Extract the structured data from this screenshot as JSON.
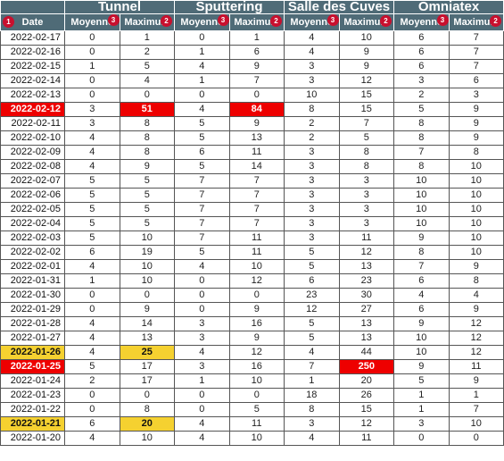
{
  "headers": {
    "groups": [
      "Tunnel",
      "Sputtering",
      "Salle des Cuves",
      "Omniatex"
    ],
    "date": "Date",
    "moyenne": "Moyenne",
    "maximum": "Maximum",
    "badges": {
      "date": "1",
      "moyenne": "3",
      "maximum": "2"
    }
  },
  "colors": {
    "header_bg": "#4f6b77",
    "red_highlight": "#ee0000",
    "yellow_highlight": "#f5d130",
    "badge": "#c8102e"
  },
  "rows": [
    {
      "date": "2022-02-17",
      "values": [
        "0",
        "1",
        "0",
        "1",
        "4",
        "10",
        "6",
        "7"
      ],
      "date_hl": "",
      "hl": [
        "",
        "",
        "",
        "",
        "",
        "",
        "",
        ""
      ]
    },
    {
      "date": "2022-02-16",
      "values": [
        "0",
        "2",
        "1",
        "6",
        "4",
        "9",
        "6",
        "7"
      ],
      "date_hl": "",
      "hl": [
        "",
        "",
        "",
        "",
        "",
        "",
        "",
        ""
      ]
    },
    {
      "date": "2022-02-15",
      "values": [
        "1",
        "5",
        "4",
        "9",
        "3",
        "9",
        "6",
        "7"
      ],
      "date_hl": "",
      "hl": [
        "",
        "",
        "",
        "",
        "",
        "",
        "",
        ""
      ]
    },
    {
      "date": "2022-02-14",
      "values": [
        "0",
        "4",
        "1",
        "7",
        "3",
        "12",
        "3",
        "6"
      ],
      "date_hl": "",
      "hl": [
        "",
        "",
        "",
        "",
        "",
        "",
        "",
        ""
      ]
    },
    {
      "date": "2022-02-13",
      "values": [
        "0",
        "0",
        "0",
        "0",
        "10",
        "15",
        "2",
        "3"
      ],
      "date_hl": "",
      "hl": [
        "",
        "",
        "",
        "",
        "",
        "",
        "",
        ""
      ]
    },
    {
      "date": "2022-02-12",
      "values": [
        "3",
        "51",
        "4",
        "84",
        "8",
        "15",
        "5",
        "9"
      ],
      "date_hl": "red",
      "hl": [
        "",
        "red",
        "",
        "red",
        "",
        "",
        "",
        ""
      ]
    },
    {
      "date": "2022-02-11",
      "values": [
        "3",
        "8",
        "5",
        "9",
        "2",
        "7",
        "8",
        "9"
      ],
      "date_hl": "",
      "hl": [
        "",
        "",
        "",
        "",
        "",
        "",
        "",
        ""
      ]
    },
    {
      "date": "2022-02-10",
      "values": [
        "4",
        "8",
        "5",
        "13",
        "2",
        "5",
        "8",
        "9"
      ],
      "date_hl": "",
      "hl": [
        "",
        "",
        "",
        "",
        "",
        "",
        "",
        ""
      ]
    },
    {
      "date": "2022-02-09",
      "values": [
        "4",
        "8",
        "6",
        "11",
        "3",
        "8",
        "7",
        "8"
      ],
      "date_hl": "",
      "hl": [
        "",
        "",
        "",
        "",
        "",
        "",
        "",
        ""
      ]
    },
    {
      "date": "2022-02-08",
      "values": [
        "4",
        "9",
        "5",
        "14",
        "3",
        "8",
        "8",
        "10"
      ],
      "date_hl": "",
      "hl": [
        "",
        "",
        "",
        "",
        "",
        "",
        "",
        ""
      ]
    },
    {
      "date": "2022-02-07",
      "values": [
        "5",
        "5",
        "7",
        "7",
        "3",
        "3",
        "10",
        "10"
      ],
      "date_hl": "",
      "hl": [
        "",
        "",
        "",
        "",
        "",
        "",
        "",
        ""
      ]
    },
    {
      "date": "2022-02-06",
      "values": [
        "5",
        "5",
        "7",
        "7",
        "3",
        "3",
        "10",
        "10"
      ],
      "date_hl": "",
      "hl": [
        "",
        "",
        "",
        "",
        "",
        "",
        "",
        ""
      ]
    },
    {
      "date": "2022-02-05",
      "values": [
        "5",
        "5",
        "7",
        "7",
        "3",
        "3",
        "10",
        "10"
      ],
      "date_hl": "",
      "hl": [
        "",
        "",
        "",
        "",
        "",
        "",
        "",
        ""
      ]
    },
    {
      "date": "2022-02-04",
      "values": [
        "5",
        "5",
        "7",
        "7",
        "3",
        "3",
        "10",
        "10"
      ],
      "date_hl": "",
      "hl": [
        "",
        "",
        "",
        "",
        "",
        "",
        "",
        ""
      ]
    },
    {
      "date": "2022-02-03",
      "values": [
        "5",
        "10",
        "7",
        "11",
        "3",
        "11",
        "9",
        "10"
      ],
      "date_hl": "",
      "hl": [
        "",
        "",
        "",
        "",
        "",
        "",
        "",
        ""
      ]
    },
    {
      "date": "2022-02-02",
      "values": [
        "6",
        "19",
        "5",
        "11",
        "5",
        "12",
        "8",
        "10"
      ],
      "date_hl": "",
      "hl": [
        "",
        "",
        "",
        "",
        "",
        "",
        "",
        ""
      ]
    },
    {
      "date": "2022-02-01",
      "values": [
        "4",
        "10",
        "4",
        "10",
        "5",
        "13",
        "7",
        "9"
      ],
      "date_hl": "",
      "hl": [
        "",
        "",
        "",
        "",
        "",
        "",
        "",
        ""
      ]
    },
    {
      "date": "2022-01-31",
      "values": [
        "1",
        "10",
        "0",
        "12",
        "6",
        "23",
        "6",
        "8"
      ],
      "date_hl": "",
      "hl": [
        "",
        "",
        "",
        "",
        "",
        "",
        "",
        ""
      ]
    },
    {
      "date": "2022-01-30",
      "values": [
        "0",
        "0",
        "0",
        "0",
        "23",
        "30",
        "4",
        "4"
      ],
      "date_hl": "",
      "hl": [
        "",
        "",
        "",
        "",
        "",
        "",
        "",
        ""
      ]
    },
    {
      "date": "2022-01-29",
      "values": [
        "0",
        "9",
        "0",
        "9",
        "12",
        "27",
        "6",
        "9"
      ],
      "date_hl": "",
      "hl": [
        "",
        "",
        "",
        "",
        "",
        "",
        "",
        ""
      ]
    },
    {
      "date": "2022-01-28",
      "values": [
        "4",
        "14",
        "3",
        "16",
        "5",
        "13",
        "9",
        "12"
      ],
      "date_hl": "",
      "hl": [
        "",
        "",
        "",
        "",
        "",
        "",
        "",
        ""
      ]
    },
    {
      "date": "2022-01-27",
      "values": [
        "4",
        "13",
        "3",
        "9",
        "5",
        "13",
        "10",
        "12"
      ],
      "date_hl": "",
      "hl": [
        "",
        "",
        "",
        "",
        "",
        "",
        "",
        ""
      ]
    },
    {
      "date": "2022-01-26",
      "values": [
        "4",
        "25",
        "4",
        "12",
        "4",
        "44",
        "10",
        "12"
      ],
      "date_hl": "yellow",
      "hl": [
        "",
        "yellow",
        "",
        "",
        "",
        "",
        "",
        ""
      ]
    },
    {
      "date": "2022-01-25",
      "values": [
        "5",
        "17",
        "3",
        "16",
        "7",
        "250",
        "9",
        "11"
      ],
      "date_hl": "red",
      "hl": [
        "",
        "",
        "",
        "",
        "",
        "red",
        "",
        ""
      ]
    },
    {
      "date": "2022-01-24",
      "values": [
        "2",
        "17",
        "1",
        "10",
        "1",
        "20",
        "5",
        "9"
      ],
      "date_hl": "",
      "hl": [
        "",
        "",
        "",
        "",
        "",
        "",
        "",
        ""
      ]
    },
    {
      "date": "2022-01-23",
      "values": [
        "0",
        "0",
        "0",
        "0",
        "18",
        "26",
        "1",
        "1"
      ],
      "date_hl": "",
      "hl": [
        "",
        "",
        "",
        "",
        "",
        "",
        "",
        ""
      ]
    },
    {
      "date": "2022-01-22",
      "values": [
        "0",
        "8",
        "0",
        "5",
        "8",
        "15",
        "1",
        "7"
      ],
      "date_hl": "",
      "hl": [
        "",
        "",
        "",
        "",
        "",
        "",
        "",
        ""
      ]
    },
    {
      "date": "2022-01-21",
      "values": [
        "6",
        "20",
        "4",
        "11",
        "3",
        "12",
        "3",
        "10"
      ],
      "date_hl": "yellow",
      "hl": [
        "",
        "yellow",
        "",
        "",
        "",
        "",
        "",
        ""
      ]
    },
    {
      "date": "2022-01-20",
      "values": [
        "4",
        "10",
        "4",
        "10",
        "4",
        "11",
        "0",
        "0"
      ],
      "date_hl": "",
      "hl": [
        "",
        "",
        "",
        "",
        "",
        "",
        "",
        ""
      ]
    }
  ]
}
